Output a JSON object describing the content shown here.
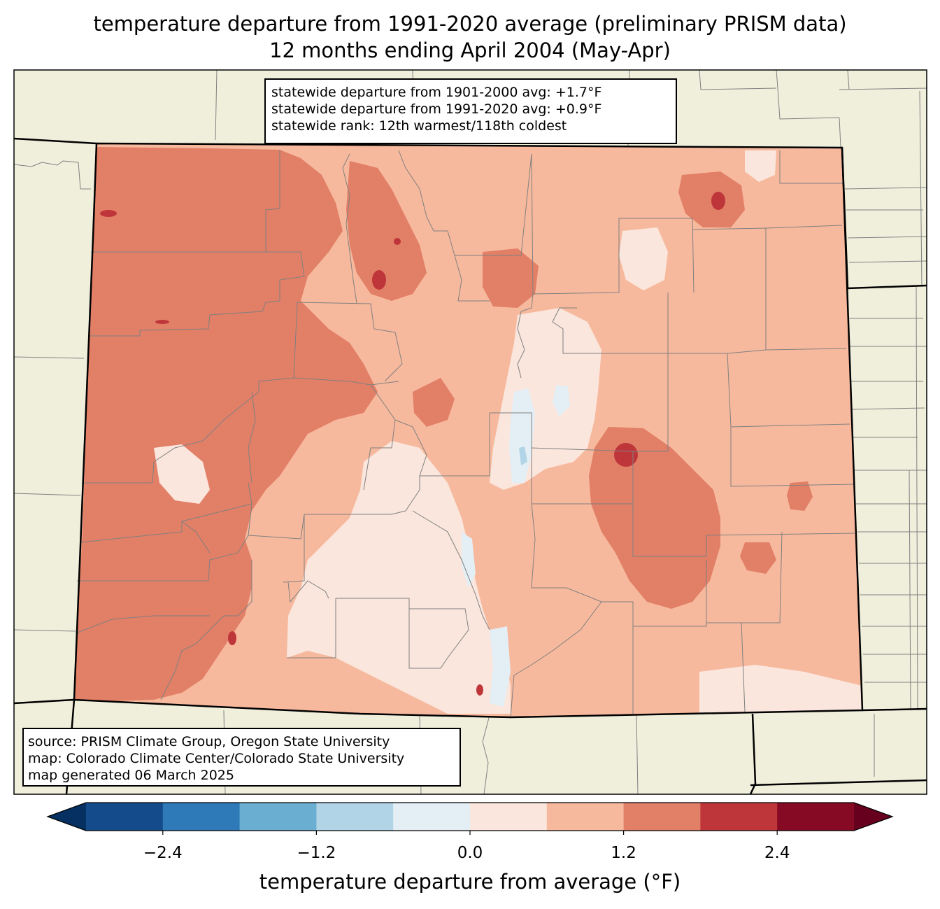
{
  "title": {
    "line1": "temperature departure from 1991-2020 average (preliminary PRISM data)",
    "line2": "12 months ending April 2004 (May-Apr)"
  },
  "stats": {
    "line1": "statewide departure from 1901-2000 avg: +1.7°F",
    "line2": "statewide departure from 1991-2020 avg: +0.9°F",
    "line3": "statewide rank: 12th warmest/118th coldest"
  },
  "source": {
    "line1": "source: PRISM Climate Group, Oregon State University",
    "line2": "map: Colorado Climate Center/Colorado State University",
    "line3": "map generated 06 March 2025"
  },
  "colorbar": {
    "label": "temperature departure from average (°F)",
    "ticks": [
      "−2.4",
      "−1.2",
      "0.0",
      "1.2",
      "2.4"
    ],
    "levels": [
      -3.0,
      -2.4,
      -1.8,
      -1.2,
      -0.6,
      0.0,
      0.6,
      1.2,
      1.8,
      2.4,
      3.0
    ],
    "colors": [
      "#053061",
      "#144b8a",
      "#2e7ab8",
      "#6aaed1",
      "#b1d5e7",
      "#e4eef5",
      "#fae6dc",
      "#f7b99d",
      "#e27f67",
      "#bf363a",
      "#870a24",
      "#67001f"
    ]
  },
  "map_colors": {
    "land": "#f0efdc",
    "county_line": "#808080",
    "state_line": "#000000"
  }
}
